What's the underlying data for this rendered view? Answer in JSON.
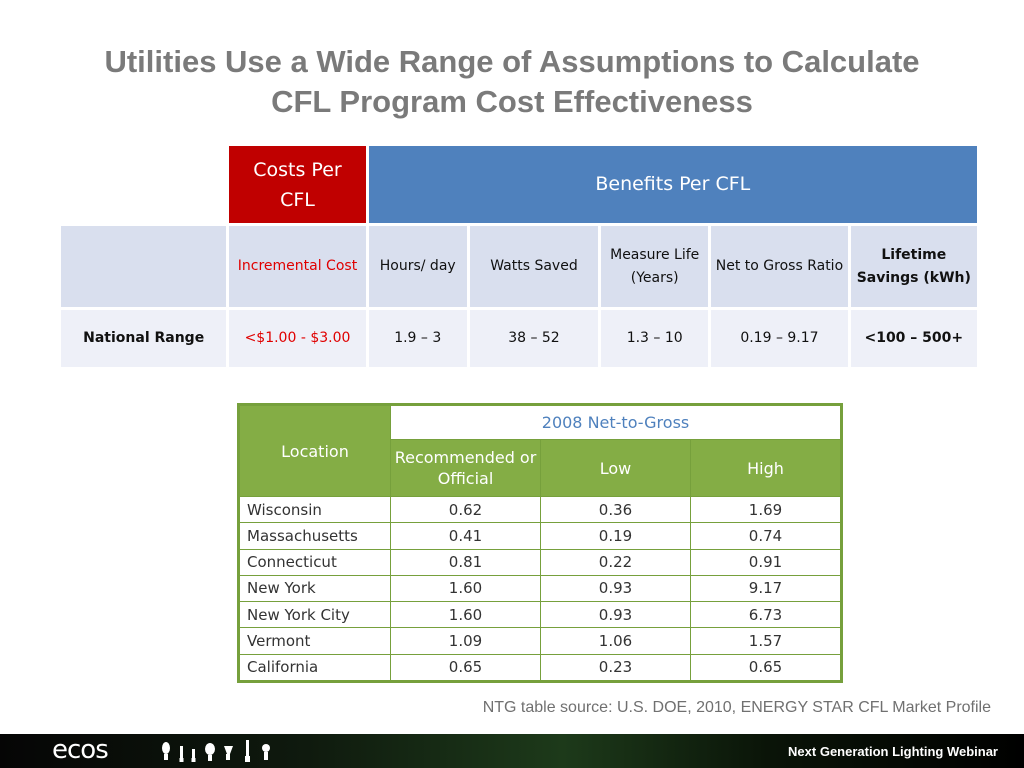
{
  "title": {
    "line1": "Utilities Use a Wide Range of Assumptions to Calculate",
    "line2": "CFL Program Cost Effectiveness"
  },
  "main_table": {
    "costs_header": "Costs Per CFL",
    "benefits_header": "Benefits Per CFL",
    "subheaders": {
      "cost": "Incremental Cost",
      "hours": "Hours/ day",
      "watts": "Watts Saved",
      "life": "Measure Life (Years)",
      "ntg": "Net to Gross Ratio",
      "savings": "Lifetime Savings (kWh)"
    },
    "row": {
      "label": "National Range",
      "cost": "<$1.00 - $3.00",
      "hours": "1.9 – 3",
      "watts": "38 – 52",
      "life": "1.3 – 10",
      "ntg": "0.19 – 9.17",
      "savings": "<100 – 500+"
    }
  },
  "ntg_table": {
    "location_header": "Location",
    "year_header": "2008 Net-to-Gross",
    "columns": [
      "Recommended or Official",
      "Low",
      "High"
    ],
    "rows": [
      {
        "location": "Wisconsin",
        "recommended": "0.62",
        "low": "0.36",
        "high": "1.69"
      },
      {
        "location": "Massachusetts",
        "recommended": "0.41",
        "low": "0.19",
        "high": "0.74"
      },
      {
        "location": "Connecticut",
        "recommended": "0.81",
        "low": "0.22",
        "high": "0.91"
      },
      {
        "location": "New York",
        "recommended": "1.60",
        "low": "0.93",
        "high": "9.17"
      },
      {
        "location": "New York City",
        "recommended": "1.60",
        "low": "0.93",
        "high": "6.73"
      },
      {
        "location": "Vermont",
        "recommended": "1.09",
        "low": "1.06",
        "high": "1.57"
      },
      {
        "location": "California",
        "recommended": "0.65",
        "low": "0.23",
        "high": "0.65"
      }
    ]
  },
  "source_note": "NTG table source: U.S. DOE, 2010, ENERGY STAR CFL Market Profile",
  "footer": {
    "logo": "ecos",
    "tagline": "Next Generation Lighting Webinar"
  },
  "colors": {
    "cost_red": "#c00000",
    "benefit_blue": "#4f81bd",
    "ntg_green": "#84ad45",
    "title_gray": "#7a7a7a"
  }
}
